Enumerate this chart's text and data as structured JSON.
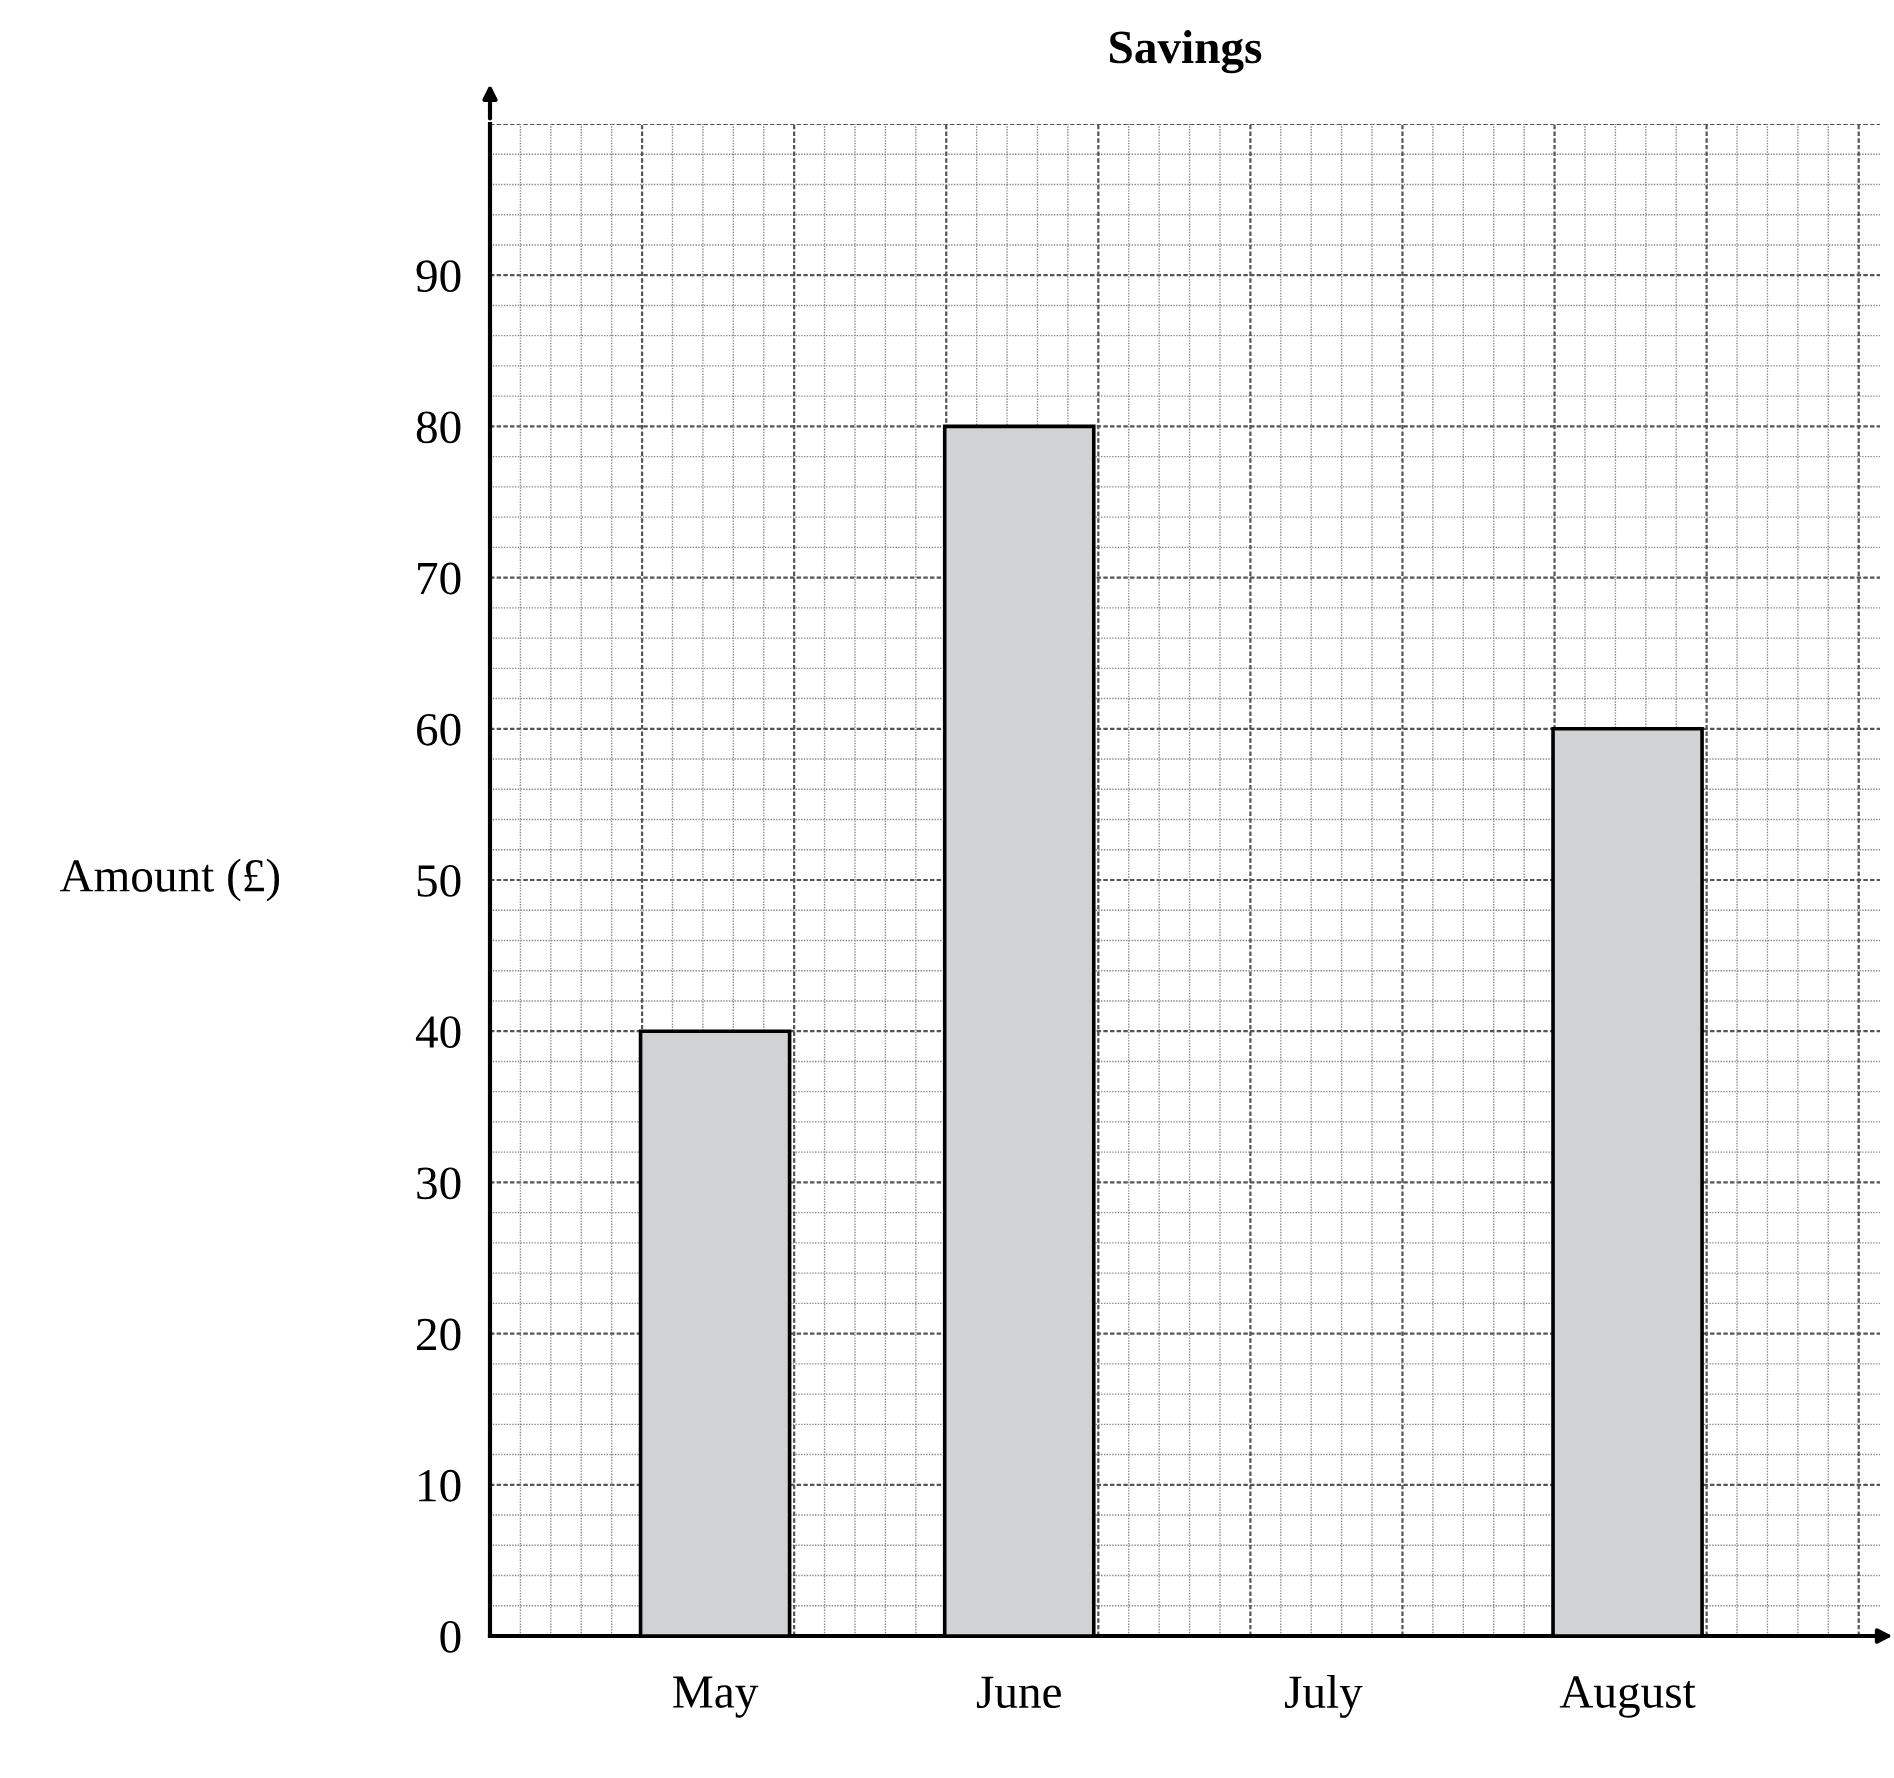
{
  "chart_data": {
    "type": "bar",
    "title": "Savings",
    "ylabel": "Amount (£)",
    "categories": [
      "May",
      "June",
      "July",
      "August"
    ],
    "values": [
      40,
      80,
      null,
      60
    ],
    "color": "#d1d2d4",
    "ylim": [
      0,
      100
    ],
    "yticks": [
      0,
      10,
      20,
      30,
      40,
      50,
      60,
      70,
      80,
      90
    ],
    "grid": true
  }
}
